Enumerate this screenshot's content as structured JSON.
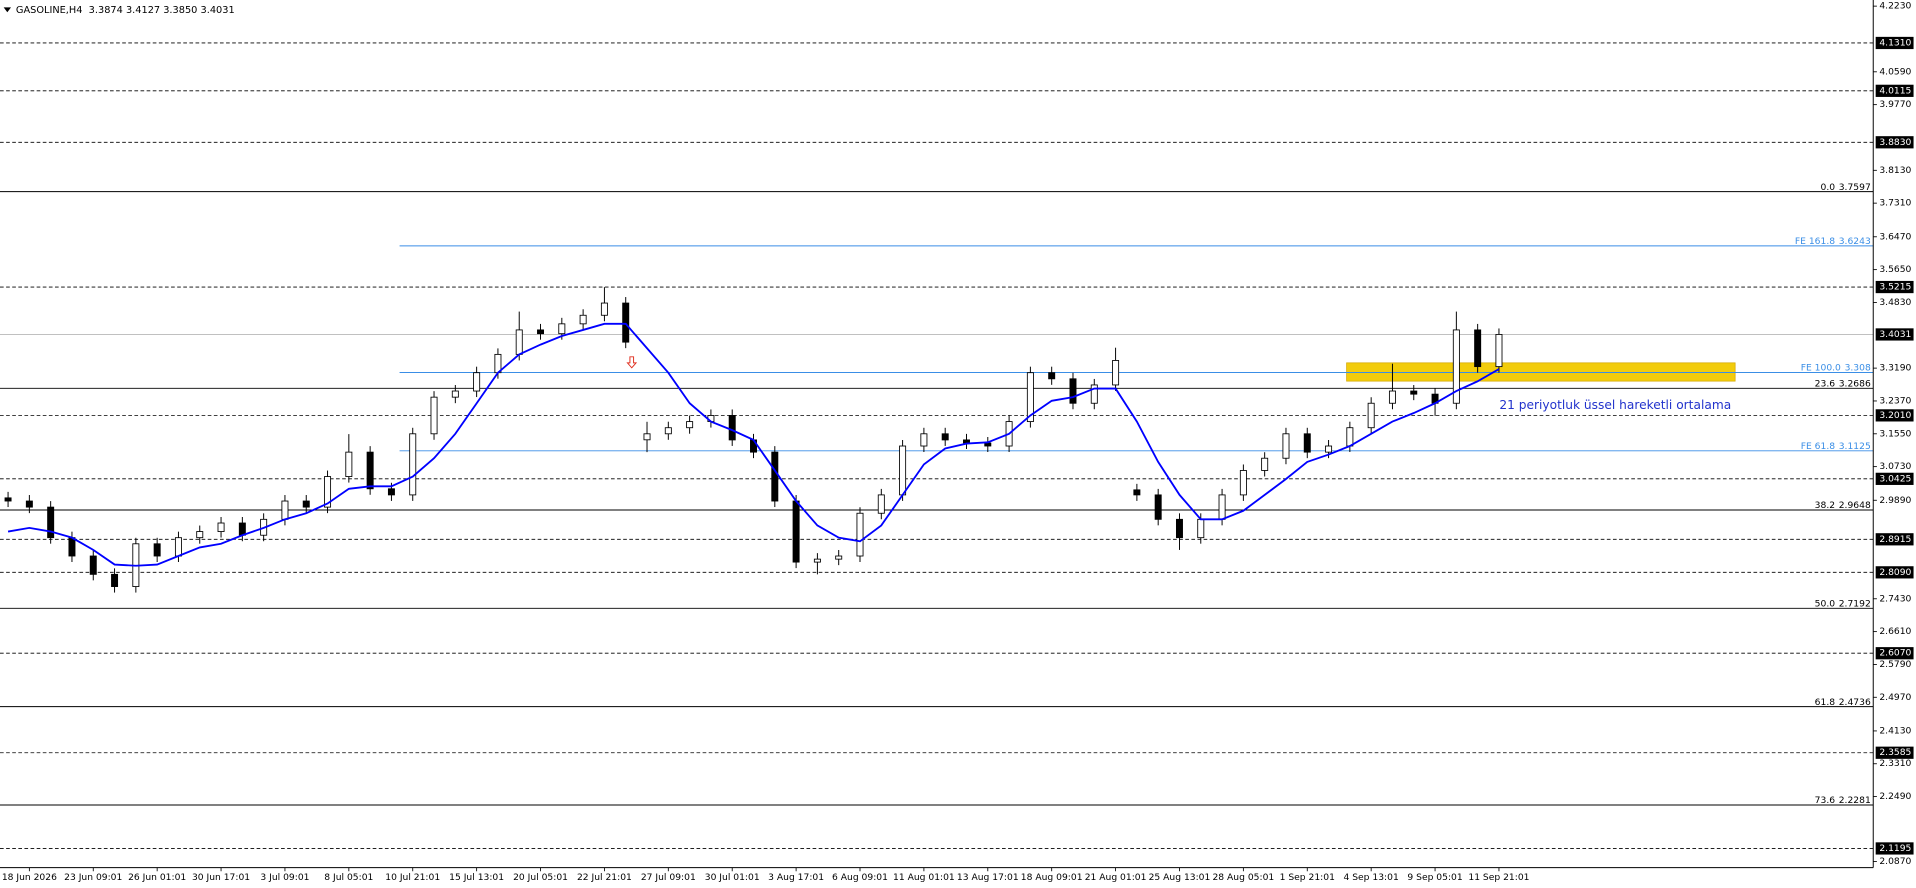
{
  "chart_data": {
    "type": "candlestick",
    "title": "GASOLINE,H4  3.3874 3.4127 3.3850 3.4031",
    "annotation": "21 periyotluk üssel hareketli ortalama",
    "categories": [
      null,
      "18 Jun 2026",
      null,
      null,
      "23 Jun 09:01",
      null,
      null,
      "26 Jun 01:01",
      null,
      null,
      "30 Jun 17:01",
      null,
      null,
      "3 Jul 09:01",
      null,
      null,
      "8 Jul 05:01",
      null,
      null,
      "10 Jul 21:01",
      null,
      null,
      "15 Jul 13:01",
      null,
      null,
      "20 Jul 05:01",
      null,
      null,
      "22 Jul 21:01",
      null,
      null,
      "27 Jul 09:01",
      null,
      null,
      "30 Jul 01:01",
      null,
      null,
      "3 Aug 17:01",
      null,
      null,
      "6 Aug 09:01",
      null,
      null,
      "11 Aug 01:01",
      null,
      null,
      "13 Aug 17:01",
      null,
      null,
      "18 Aug 09:01",
      null,
      null,
      "21 Aug 01:01",
      null,
      null,
      "25 Aug 13:01",
      null,
      null,
      "28 Aug 05:01",
      null,
      null,
      "1 Sep 21:01",
      null,
      null,
      "4 Sep 13:01",
      null,
      null,
      "9 Sep 05:01",
      null,
      null,
      "11 Sep 21:01"
    ],
    "open": [
      2.995,
      2.9871,
      2.9719,
      2.8956,
      2.8498,
      2.804,
      2.7735,
      2.8803,
      2.8498,
      2.8956,
      2.9109,
      2.9322,
      2.9017,
      2.9414,
      2.9871,
      2.9719,
      3.0482,
      3.1092,
      3.0177,
      3.0024,
      3.155,
      3.2465,
      3.2618,
      3.3076,
      3.3533,
      3.4144,
      3.405,
      3.4296,
      3.451,
      3.4815,
      3.14,
      3.155,
      3.1702,
      3.1855,
      3.2008,
      3.1397,
      3.1092,
      2.9871,
      2.8346,
      2.842,
      2.8498,
      2.9566,
      3.0024,
      3.1245,
      3.155,
      3.1397,
      3.132,
      3.1245,
      3.1855,
      3.3076,
      3.2923,
      3.2313,
      3.277,
      3.015,
      3.0024,
      2.9414,
      2.8956,
      2.9414,
      3.0024,
      3.0634,
      3.094,
      3.155,
      3.1092,
      3.1245,
      3.1702,
      3.2313,
      3.2618,
      3.254,
      3.2313,
      3.4144,
      3.3228
    ],
    "high": [
      3.01,
      3.0021,
      2.9869,
      2.9106,
      2.8648,
      2.819,
      2.8953,
      2.8953,
      2.9106,
      2.9259,
      2.9472,
      2.9472,
      2.9564,
      3.0021,
      3.0021,
      3.0632,
      3.1542,
      3.1242,
      3.0327,
      3.17,
      3.2615,
      3.2768,
      3.3226,
      3.3683,
      3.4602,
      3.4294,
      3.4446,
      3.466,
      3.5212,
      3.4965,
      3.185,
      3.1852,
      3.2005,
      3.2158,
      3.2158,
      3.1547,
      3.1242,
      3.0021,
      2.857,
      2.8648,
      2.9716,
      3.0174,
      3.1395,
      3.17,
      3.17,
      3.1547,
      3.147,
      3.2005,
      3.3226,
      3.3226,
      3.3073,
      3.292,
      3.37,
      3.03,
      3.0174,
      2.9564,
      2.9564,
      3.0174,
      3.0784,
      3.109,
      3.17,
      3.17,
      3.1395,
      3.1852,
      3.2463,
      3.33,
      3.2768,
      3.269,
      3.4602,
      3.4294,
      3.4181
    ],
    "low": [
      2.9721,
      2.9569,
      2.8806,
      2.8348,
      2.789,
      2.7585,
      2.7585,
      2.8348,
      2.8348,
      2.8806,
      2.8959,
      2.8867,
      2.8867,
      2.9264,
      2.9569,
      2.9569,
      3.0332,
      3.0027,
      2.9874,
      2.9874,
      3.14,
      3.2315,
      3.2468,
      3.2926,
      3.3383,
      3.39,
      3.39,
      3.4146,
      3.436,
      3.3689,
      3.1092,
      3.14,
      3.1552,
      3.1705,
      3.1247,
      3.0942,
      2.9721,
      2.8196,
      2.804,
      2.827,
      2.8348,
      2.9416,
      2.9874,
      3.1095,
      3.1247,
      3.117,
      3.1095,
      3.1095,
      3.1705,
      3.2773,
      3.2163,
      3.2163,
      3.262,
      2.9874,
      2.9264,
      2.865,
      2.8806,
      2.9264,
      2.9874,
      3.0484,
      3.079,
      3.0942,
      3.0942,
      3.1095,
      3.1552,
      3.2163,
      3.239,
      3.2,
      3.2163,
      3.3078,
      3.3078
    ],
    "close": [
      2.9871,
      2.9719,
      2.8956,
      2.8498,
      2.804,
      2.7735,
      2.8803,
      2.8498,
      2.8956,
      2.9109,
      2.9322,
      2.9017,
      2.9414,
      2.9871,
      2.9719,
      3.0482,
      3.1092,
      3.0177,
      3.0024,
      3.155,
      3.2465,
      3.2618,
      3.3076,
      3.3533,
      3.4144,
      3.405,
      3.4296,
      3.451,
      3.4815,
      3.3839,
      3.155,
      3.1702,
      3.1855,
      3.2008,
      3.1397,
      3.1092,
      2.9871,
      2.8346,
      2.842,
      2.8498,
      2.9566,
      3.0024,
      3.1245,
      3.155,
      3.1397,
      3.132,
      3.1245,
      3.1855,
      3.3076,
      3.2923,
      3.2313,
      3.277,
      3.3381,
      3.0024,
      2.9414,
      2.8956,
      2.9414,
      3.0024,
      3.0634,
      3.094,
      3.155,
      3.1092,
      3.1245,
      3.1702,
      3.2313,
      3.2618,
      3.254,
      3.2313,
      3.4144,
      3.3228,
      3.4031
    ],
    "ema": {
      "color": "#0000ff",
      "values": [
        2.9109,
        2.92,
        2.9109,
        2.8956,
        2.8651,
        2.8285,
        2.8254,
        2.8285,
        2.8498,
        2.8712,
        2.8803,
        2.9017,
        2.92,
        2.9414,
        2.9566,
        2.981,
        3.0177,
        3.0238,
        3.0238,
        3.0482,
        3.094,
        3.155,
        3.2313,
        3.3076,
        3.3533,
        3.3778,
        3.3991,
        3.4144,
        3.4296,
        3.4296,
        3.3686,
        3.3076,
        3.2313,
        3.1855,
        3.1641,
        3.1397,
        3.0634,
        2.9871,
        2.9261,
        2.8956,
        2.8864,
        2.9261,
        3.0024,
        3.0787,
        3.1184,
        3.1306,
        3.1336,
        3.155,
        3.2008,
        3.2374,
        3.2465,
        3.2679,
        3.2679,
        3.1855,
        3.0848,
        3.0024,
        2.9414,
        2.9414,
        2.9627,
        3.0024,
        3.0421,
        3.0848,
        3.1031,
        3.1245,
        3.155,
        3.1855,
        3.2069,
        3.2313,
        3.2618,
        3.2862,
        3.3167
      ]
    },
    "bull_color": "#ffffff",
    "bear_color": "#000000",
    "ylim": [
      2.0717,
      4.2383
    ],
    "yticks": [
      {
        "value": 4.223,
        "label": "4.2230"
      },
      {
        "value": 4.059,
        "label": "4.0590"
      },
      {
        "value": 3.977,
        "label": "3.9770"
      },
      {
        "value": 3.813,
        "label": "3.8130"
      },
      {
        "value": 3.731,
        "label": "3.7310"
      },
      {
        "value": 3.647,
        "label": "3.6470"
      },
      {
        "value": 3.565,
        "label": "3.5650"
      },
      {
        "value": 3.483,
        "label": "3.4830"
      },
      {
        "value": 3.319,
        "label": "3.3190"
      },
      {
        "value": 3.237,
        "label": "3.2370"
      },
      {
        "value": 3.155,
        "label": "3.1550"
      },
      {
        "value": 3.073,
        "label": "3.0730"
      },
      {
        "value": 2.989,
        "label": "2.9890"
      },
      {
        "value": 2.743,
        "label": "2.7430"
      },
      {
        "value": 2.661,
        "label": "2.6610"
      },
      {
        "value": 2.579,
        "label": "2.5790"
      },
      {
        "value": 2.497,
        "label": "2.4970"
      },
      {
        "value": 2.413,
        "label": "2.4130"
      },
      {
        "value": 2.331,
        "label": "2.3310"
      },
      {
        "value": 2.249,
        "label": "2.2490"
      },
      {
        "value": 2.087,
        "label": "2.0870"
      }
    ],
    "grid": false,
    "hlines": [
      {
        "value": 4.131,
        "label": "4.1310"
      },
      {
        "value": 4.0115,
        "label": "4.0115"
      },
      {
        "value": 3.883,
        "label": "3.8830"
      },
      {
        "value": 3.5215,
        "label": "3.5215"
      },
      {
        "value": 3.201,
        "label": "3.2010"
      },
      {
        "value": 3.0425,
        "label": "3.0425"
      },
      {
        "value": 2.8915,
        "label": "2.8915"
      },
      {
        "value": 2.809,
        "label": "2.8090"
      },
      {
        "value": 2.607,
        "label": "2.6070"
      },
      {
        "value": 2.3585,
        "label": "2.3585"
      },
      {
        "value": 2.1195,
        "label": "2.1195"
      }
    ],
    "price_line": {
      "value": 3.4031,
      "label": "3.4031"
    },
    "fibonacci": [
      {
        "label": "0.0",
        "value": 3.7597
      },
      {
        "label": "23.6",
        "value": 3.2686
      },
      {
        "label": "38.2",
        "value": 2.9648
      },
      {
        "label": "50.0",
        "value": 2.7192
      },
      {
        "label": "61.8",
        "value": 2.4736
      },
      {
        "label": "73.6",
        "value": 2.2281
      }
    ],
    "fibo_expansion": [
      {
        "label": "FE 161.8",
        "value": 3.6243
      },
      {
        "label": "FE 100.0",
        "value": 3.308
      },
      {
        "label": "FE 61.8",
        "value": 3.1125
      }
    ],
    "fibo_expansion_color": "#3a8ee6",
    "zone": {
      "top": 3.3322,
      "bottom": 3.2865,
      "color": "#f2cc0c"
    }
  }
}
